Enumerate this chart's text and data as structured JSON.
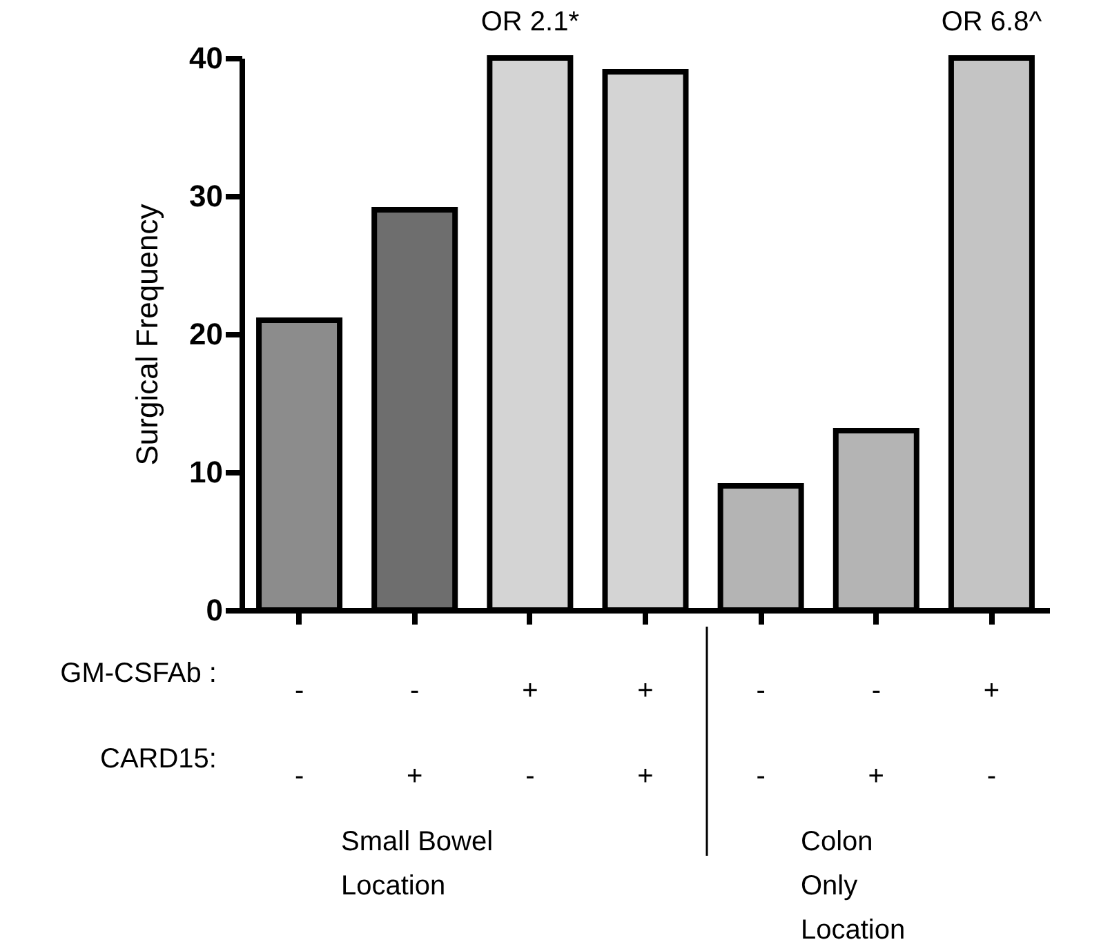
{
  "chart_data": {
    "type": "bar",
    "ylabel": "Surgical Frequency",
    "categories": [
      "-\n-",
      "-\n+",
      "+\n-",
      "+\n+",
      "-\n-",
      "-\n+",
      "+\n-"
    ],
    "values": [
      21,
      29,
      40,
      39,
      9,
      13,
      40
    ],
    "colors": [
      "#8c8c8c",
      "#6e6e6e",
      "#d4d4d4",
      "#d4d4d4",
      "#b4b4b4",
      "#b4b4b4",
      "#c4c4c4"
    ],
    "value_labels": [
      null,
      null,
      "OR 2.1*",
      null,
      null,
      null,
      "OR 6.8^"
    ],
    "ylim": [
      0,
      40
    ],
    "yticks": [
      0,
      10,
      20,
      30,
      40
    ],
    "grid": false,
    "annotations": [
      "GM-CSFAb :",
      "CARD15:",
      "Small Bowel\nLocation",
      "Colon\nOnly\nLocation"
    ]
  }
}
